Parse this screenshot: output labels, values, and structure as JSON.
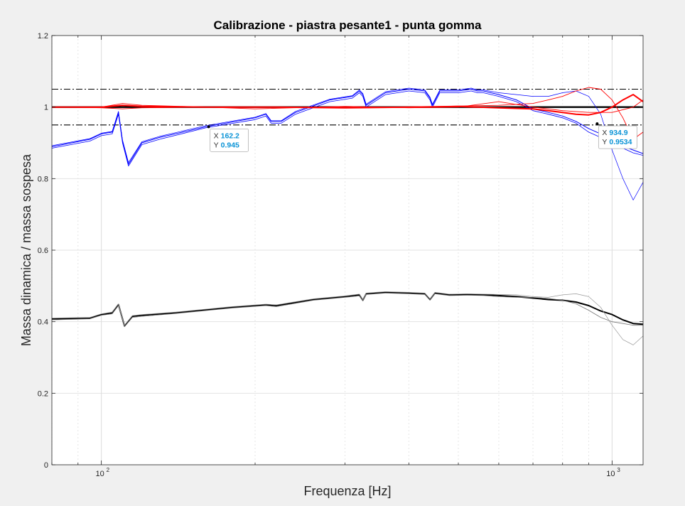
{
  "figure": {
    "background": "#f0f0f0",
    "axes_background": "#ffffff"
  },
  "chart_data": {
    "type": "line",
    "title": "Calibrazione - piastra pesante1 - punta gomma",
    "xlabel": "Frequenza [Hz]",
    "ylabel": "Massa dinamica / massa sospesa",
    "xscale": "log",
    "xlim": [
      80,
      1150
    ],
    "ylim": [
      0,
      1.2
    ],
    "grid": true,
    "x_ticks": [
      {
        "value": 100,
        "base": "10",
        "exp": "2"
      },
      {
        "value": 1000,
        "base": "10",
        "exp": "3"
      }
    ],
    "y_ticks": [
      {
        "value": 0,
        "label": "0"
      },
      {
        "value": 0.2,
        "label": "0.2"
      },
      {
        "value": 0.4,
        "label": "0.4"
      },
      {
        "value": 0.6,
        "label": "0.6"
      },
      {
        "value": 0.8,
        "label": "0.8"
      },
      {
        "value": 1.0,
        "label": "1"
      },
      {
        "value": 1.2,
        "label": "1.2"
      }
    ],
    "reference_lines": [
      {
        "y": 1.0,
        "style": "solid",
        "color": "#000000",
        "width": 2.4
      },
      {
        "y": 1.05,
        "style": "dashdot",
        "color": "#000000",
        "width": 1.1
      },
      {
        "y": 0.95,
        "style": "dashdot",
        "color": "#000000",
        "width": 1.1
      }
    ],
    "series": [
      {
        "color": "#0000ff",
        "width": 1.0,
        "x": [
          80,
          95,
          100,
          105,
          108,
          110,
          113,
          120,
          130,
          160,
          200,
          210,
          215,
          225,
          240,
          280,
          310,
          320,
          325,
          330,
          360,
          400,
          430,
          440,
          445,
          460,
          500,
          530,
          545,
          560,
          600,
          650,
          700,
          750,
          800,
          850,
          900,
          950,
          1000,
          1050,
          1100,
          1150
        ],
        "y": [
          0.889,
          0.91,
          0.925,
          0.93,
          0.985,
          0.905,
          0.84,
          0.9,
          0.915,
          0.945,
          0.97,
          0.98,
          0.96,
          0.96,
          0.985,
          1.02,
          1.03,
          1.045,
          1.035,
          1.005,
          1.04,
          1.05,
          1.045,
          1.025,
          1.005,
          1.045,
          1.045,
          1.05,
          1.045,
          1.045,
          1.035,
          1.02,
          0.995,
          0.985,
          0.975,
          0.96,
          0.94,
          0.925,
          0.91,
          0.89,
          0.88,
          0.87
        ]
      },
      {
        "color": "#0000ff",
        "width": 0.8,
        "x": [
          80,
          95,
          100,
          105,
          108,
          110,
          113,
          120,
          130,
          160,
          200,
          210,
          215,
          225,
          240,
          280,
          310,
          320,
          325,
          330,
          360,
          400,
          430,
          440,
          445,
          460,
          500,
          530,
          545,
          560,
          600,
          650,
          700,
          750,
          800,
          850,
          900,
          950,
          1000,
          1050,
          1100,
          1150
        ],
        "y": [
          0.885,
          0.905,
          0.92,
          0.925,
          0.98,
          0.9,
          0.835,
          0.895,
          0.91,
          0.942,
          0.965,
          0.975,
          0.955,
          0.955,
          0.98,
          1.015,
          1.025,
          1.04,
          1.03,
          1.0,
          1.035,
          1.045,
          1.04,
          1.02,
          1.0,
          1.04,
          1.04,
          1.045,
          1.04,
          1.04,
          1.03,
          1.015,
          0.99,
          0.98,
          0.97,
          0.955,
          0.93,
          0.915,
          0.9,
          0.885,
          0.872,
          0.865
        ]
      },
      {
        "color": "#0000ff",
        "width": 0.7,
        "x": [
          80,
          95,
          100,
          105,
          108,
          110,
          113,
          120,
          130,
          160,
          200,
          210,
          215,
          225,
          240,
          280,
          310,
          320,
          325,
          330,
          360,
          400,
          430,
          440,
          445,
          460,
          500,
          530,
          545,
          560,
          600,
          650,
          700,
          750,
          800,
          850,
          900,
          950,
          1000,
          1050,
          1100,
          1150
        ],
        "y": [
          0.892,
          0.912,
          0.927,
          0.932,
          0.988,
          0.908,
          0.845,
          0.903,
          0.918,
          0.948,
          0.972,
          0.982,
          0.962,
          0.962,
          0.988,
          1.022,
          1.032,
          1.048,
          1.038,
          1.008,
          1.043,
          1.053,
          1.048,
          1.028,
          1.008,
          1.048,
          1.048,
          1.053,
          1.048,
          1.048,
          1.04,
          1.035,
          1.03,
          1.03,
          1.04,
          1.045,
          1.03,
          0.98,
          0.88,
          0.8,
          0.74,
          0.79
        ]
      },
      {
        "color": "#ff0000",
        "width": 2.0,
        "x": [
          80,
          100,
          110,
          120,
          160,
          200,
          220,
          300,
          400,
          500,
          600,
          700,
          750,
          800,
          850,
          900,
          950,
          1000,
          1050,
          1100,
          1150
        ],
        "y": [
          1.0,
          1.0,
          1.005,
          1.002,
          1.0,
          1.0,
          1.0,
          0.998,
          1.0,
          1.002,
          0.998,
          0.995,
          0.99,
          0.985,
          0.98,
          0.978,
          0.985,
          1.0,
          1.02,
          1.035,
          1.015
        ]
      },
      {
        "color": "#ff0000",
        "width": 0.9,
        "x": [
          80,
          100,
          110,
          120,
          160,
          200,
          300,
          400,
          500,
          600,
          700,
          750,
          800,
          850,
          900,
          950,
          1000,
          1050,
          1100,
          1150
        ],
        "y": [
          1.0,
          1.0,
          1.01,
          1.005,
          1.0,
          1.0,
          1.0,
          1.0,
          1.003,
          1.005,
          1.01,
          1.02,
          1.03,
          1.045,
          1.055,
          1.05,
          1.02,
          0.97,
          0.91,
          0.93
        ]
      },
      {
        "color": "#ff0000",
        "width": 0.9,
        "x": [
          80,
          100,
          110,
          120,
          160,
          200,
          300,
          400,
          500,
          600,
          700,
          800,
          900,
          1000,
          1100,
          1150
        ],
        "y": [
          1.0,
          0.998,
          0.995,
          0.998,
          1.0,
          0.995,
          1.002,
          0.998,
          1.0,
          1.015,
          1.0,
          0.99,
          0.985,
          0.985,
          1.0,
          1.02
        ]
      },
      {
        "color": "#000000",
        "width": 2.0,
        "x": [
          80,
          95,
          100,
          105,
          108,
          111,
          115,
          120,
          140,
          180,
          210,
          220,
          260,
          300,
          320,
          325,
          330,
          360,
          400,
          430,
          440,
          450,
          480,
          520,
          560,
          600,
          650,
          700,
          750,
          800,
          850,
          900,
          950,
          1000,
          1050,
          1100,
          1150
        ],
        "y": [
          0.408,
          0.41,
          0.42,
          0.425,
          0.448,
          0.388,
          0.415,
          0.418,
          0.425,
          0.44,
          0.447,
          0.445,
          0.462,
          0.47,
          0.475,
          0.46,
          0.478,
          0.482,
          0.48,
          0.478,
          0.462,
          0.48,
          0.475,
          0.476,
          0.475,
          0.473,
          0.47,
          0.466,
          0.462,
          0.46,
          0.455,
          0.445,
          0.43,
          0.42,
          0.405,
          0.395,
          0.393
        ]
      },
      {
        "color": "#777777",
        "width": 0.8,
        "x": [
          80,
          95,
          100,
          105,
          108,
          111,
          115,
          120,
          140,
          180,
          210,
          220,
          260,
          300,
          320,
          325,
          330,
          360,
          400,
          430,
          440,
          450,
          480,
          520,
          560,
          600,
          650,
          700,
          750,
          800,
          850,
          900,
          950,
          1000,
          1050,
          1100,
          1150
        ],
        "y": [
          0.405,
          0.408,
          0.418,
          0.422,
          0.445,
          0.386,
          0.412,
          0.415,
          0.423,
          0.438,
          0.445,
          0.442,
          0.46,
          0.468,
          0.472,
          0.458,
          0.476,
          0.48,
          0.478,
          0.476,
          0.46,
          0.478,
          0.473,
          0.474,
          0.473,
          0.47,
          0.468,
          0.468,
          0.465,
          0.46,
          0.45,
          0.432,
          0.412,
          0.4,
          0.395,
          0.39,
          0.39
        ]
      },
      {
        "color": "#999999",
        "width": 0.7,
        "x": [
          80,
          95,
          100,
          105,
          108,
          111,
          115,
          120,
          140,
          180,
          210,
          220,
          260,
          300,
          320,
          325,
          330,
          360,
          400,
          430,
          440,
          450,
          480,
          520,
          560,
          600,
          650,
          700,
          750,
          800,
          850,
          900,
          950,
          1000,
          1050,
          1100,
          1150
        ],
        "y": [
          0.41,
          0.412,
          0.422,
          0.427,
          0.45,
          0.39,
          0.417,
          0.42,
          0.427,
          0.442,
          0.449,
          0.447,
          0.464,
          0.472,
          0.477,
          0.462,
          0.48,
          0.484,
          0.482,
          0.48,
          0.464,
          0.482,
          0.477,
          0.478,
          0.477,
          0.476,
          0.475,
          0.47,
          0.468,
          0.475,
          0.478,
          0.47,
          0.44,
          0.39,
          0.35,
          0.335,
          0.36
        ]
      }
    ],
    "datatips": [
      {
        "x": 162.2,
        "y": 0.945,
        "x_label": "X",
        "y_label": "Y",
        "x_text": "162.2",
        "y_text": "0.945"
      },
      {
        "x": 934.9,
        "y": 0.9534,
        "x_label": "X",
        "y_label": "Y",
        "x_text": "934.9",
        "y_text": "0.9534"
      }
    ]
  }
}
